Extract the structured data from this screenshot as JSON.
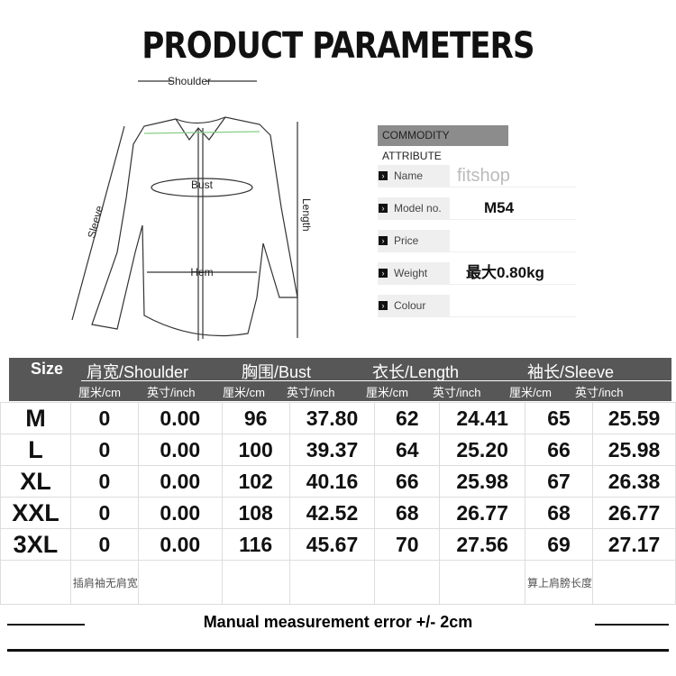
{
  "title": "PRODUCT PARAMETERS",
  "diagram": {
    "shoulder": "Shoulder",
    "bust": "Bust",
    "hem": "Hem",
    "sleeve": "Sleeve",
    "length": "Length"
  },
  "attributes": {
    "heading": "COMMODITY ATTRIBUTE",
    "rows": [
      {
        "label": "Name",
        "value": "fitshop"
      },
      {
        "label": "Model no.",
        "value": "M54"
      },
      {
        "label": "Price",
        "value": ""
      },
      {
        "label": "Weight",
        "value": "最大0.80kg"
      },
      {
        "label": "Colour",
        "value": ""
      }
    ]
  },
  "table": {
    "size_label": "Size",
    "groups": [
      "肩宽/Shoulder",
      "胸围/Bust",
      "衣长/Length",
      "袖长/Sleeve"
    ],
    "units": [
      "厘米/cm",
      "英寸/inch",
      "厘米/cm",
      "英寸/inch",
      "厘米/cm",
      "英寸/inch",
      "厘米/cm",
      "英寸/inch"
    ],
    "rows": [
      [
        "M",
        "0",
        "0.00",
        "96",
        "37.80",
        "62",
        "24.41",
        "65",
        "25.59"
      ],
      [
        "L",
        "0",
        "0.00",
        "100",
        "39.37",
        "64",
        "25.20",
        "66",
        "25.98"
      ],
      [
        "XL",
        "0",
        "0.00",
        "102",
        "40.16",
        "66",
        "25.98",
        "67",
        "26.38"
      ],
      [
        "XXL",
        "0",
        "0.00",
        "108",
        "42.52",
        "68",
        "26.77",
        "68",
        "26.77"
      ],
      [
        "3XL",
        "0",
        "0.00",
        "116",
        "45.67",
        "70",
        "27.56",
        "69",
        "27.17"
      ]
    ],
    "note_shoulder": "插肩袖无肩宽",
    "note_sleeve": "算上肩膀长度"
  },
  "footer": "Manual measurement error +/- 2cm"
}
